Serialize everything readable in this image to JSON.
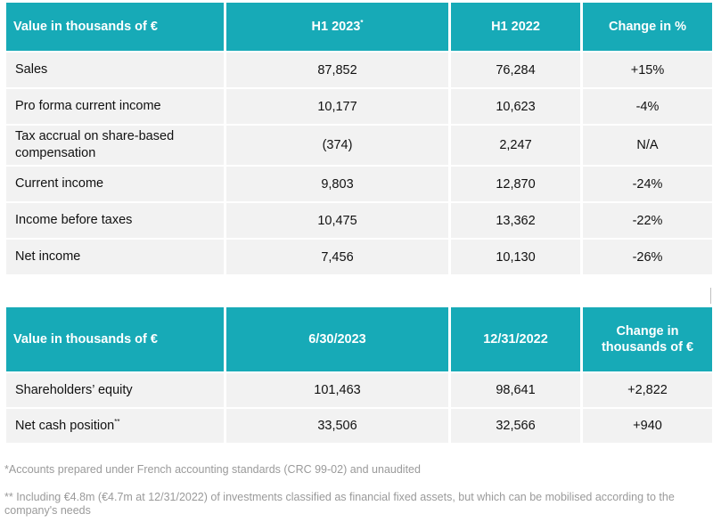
{
  "table1": {
    "headers": [
      "Value in thousands of €",
      "H1 2023",
      "H1 2022",
      "Change in %"
    ],
    "header_footnote_marker": "*",
    "rows": [
      [
        "Sales",
        "87,852",
        "76,284",
        "+15%"
      ],
      [
        "Pro forma current income",
        "10,177",
        "10,623",
        "-4%"
      ],
      [
        "Tax accrual on share-based compensation",
        "(374)",
        "2,247",
        "N/A"
      ],
      [
        "Current income",
        "9,803",
        "12,870",
        "-24%"
      ],
      [
        "Income before taxes",
        "10,475",
        "13,362",
        "-22%"
      ],
      [
        "Net income",
        "7,456",
        "10,130",
        "-26%"
      ]
    ]
  },
  "table2": {
    "headers": [
      "Value in thousands of €",
      "6/30/2023",
      "12/31/2022",
      "Change in thousands of €"
    ],
    "rows": [
      [
        "Shareholders’ equity",
        "101,463",
        "98,641",
        "+2,822"
      ],
      [
        "Net cash position",
        "33,506",
        "32,566",
        "+940"
      ]
    ],
    "row_footnote_marker": "**"
  },
  "footnotes": {
    "note1": "*Accounts prepared under French accounting standards (CRC 99-02) and unaudited",
    "note2": "** Including €4.8m (€4.7m at 12/31/2022) of investments classified as financial fixed assets, but which can be mobilised according to the company's needs"
  },
  "colors": {
    "header_bg": "#17aab7",
    "header_text": "#ffffff",
    "row_bg": "#f2f2f2",
    "note_text": "#9a9a9a"
  }
}
